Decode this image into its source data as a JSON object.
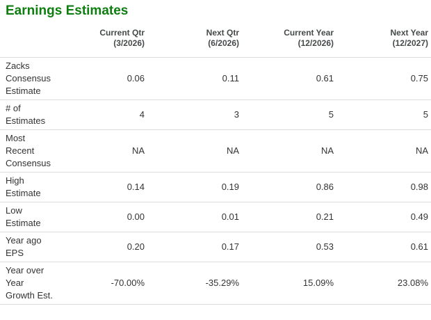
{
  "title": "Earnings Estimates",
  "colors": {
    "title_green": "#0e7e10",
    "header_text": "#45494a",
    "body_text": "#333333",
    "divider": "#dcdcdc",
    "background": "#ffffff"
  },
  "table": {
    "columns": [
      {
        "label": "Current Qtr",
        "period": "(3/2026)"
      },
      {
        "label": "Next Qtr",
        "period": "(6/2026)"
      },
      {
        "label": "Current Year",
        "period": "(12/2026)"
      },
      {
        "label": "Next Year",
        "period": "(12/2027)"
      }
    ],
    "rows": [
      {
        "label": "Zacks Consensus Estimate",
        "values": [
          "0.06",
          "0.11",
          "0.61",
          "0.75"
        ]
      },
      {
        "label": "# of Estimates",
        "values": [
          "4",
          "3",
          "5",
          "5"
        ]
      },
      {
        "label": "Most Recent Consensus",
        "values": [
          "NA",
          "NA",
          "NA",
          "NA"
        ]
      },
      {
        "label": "High Estimate",
        "values": [
          "0.14",
          "0.19",
          "0.86",
          "0.98"
        ]
      },
      {
        "label": "Low Estimate",
        "values": [
          "0.00",
          "0.01",
          "0.21",
          "0.49"
        ]
      },
      {
        "label": "Year ago EPS",
        "values": [
          "0.20",
          "0.17",
          "0.53",
          "0.61"
        ]
      },
      {
        "label": "Year over Year Growth Est.",
        "values": [
          "-70.00%",
          "-35.29%",
          "15.09%",
          "23.08%"
        ]
      }
    ]
  }
}
